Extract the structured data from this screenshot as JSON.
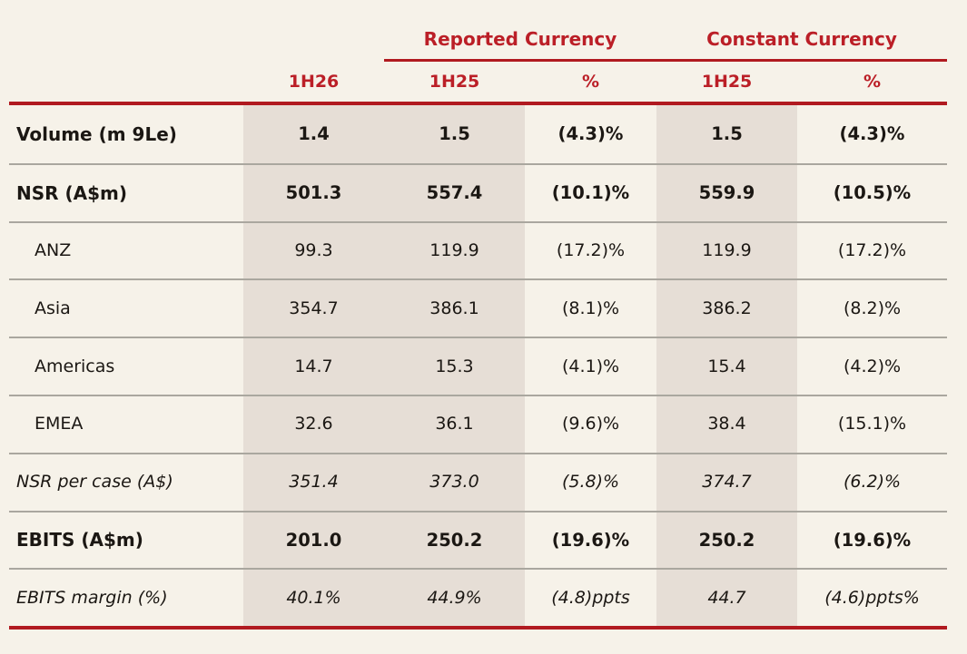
{
  "colors": {
    "background": "#f6f2e9",
    "column_shade": "#e6ded6",
    "accent_red": "#bb1f27",
    "rule_red": "#b11a20",
    "separator_gray": "#aaa79f",
    "text": "#1b1713"
  },
  "header": {
    "groups": [
      {
        "label": "Reported Currency"
      },
      {
        "label": "Constant Currency"
      }
    ],
    "columns": [
      "1H26",
      "1H25",
      "%",
      "1H25",
      "%"
    ]
  },
  "rows": [
    {
      "label": "Volume (m 9Le)",
      "style": "bold",
      "cells": [
        "1.4",
        "1.5",
        "(4.3)%",
        "1.5",
        "(4.3)%"
      ]
    },
    {
      "label": "NSR (A$m)",
      "style": "bold",
      "cells": [
        "501.3",
        "557.4",
        "(10.1)%",
        "559.9",
        "(10.5)%"
      ]
    },
    {
      "label": "ANZ",
      "style": "plain",
      "cells": [
        "99.3",
        "119.9",
        "(17.2)%",
        "119.9",
        "(17.2)%"
      ]
    },
    {
      "label": "Asia",
      "style": "plain",
      "cells": [
        "354.7",
        "386.1",
        "(8.1)%",
        "386.2",
        "(8.2)%"
      ]
    },
    {
      "label": "Americas",
      "style": "plain",
      "cells": [
        "14.7",
        "15.3",
        "(4.1)%",
        "15.4",
        "(4.2)%"
      ]
    },
    {
      "label": "EMEA",
      "style": "plain",
      "cells": [
        "32.6",
        "36.1",
        "(9.6)%",
        "38.4",
        "(15.1)%"
      ]
    },
    {
      "label": "NSR per case (A$)",
      "style": "italic",
      "cells": [
        "351.4",
        "373.0",
        "(5.8)%",
        "374.7",
        "(6.2)%"
      ]
    },
    {
      "label": "EBITS (A$m)",
      "style": "bold",
      "cells": [
        "201.0",
        "250.2",
        "(19.6)%",
        "250.2",
        "(19.6)%"
      ]
    },
    {
      "label": "EBITS margin (%)",
      "style": "italic",
      "cells": [
        "40.1%",
        "44.9%",
        "(4.8)ppts",
        "44.7",
        "(4.6)ppts%"
      ]
    }
  ],
  "chart_data": {
    "type": "table",
    "title": "",
    "column_groups": [
      "",
      "",
      "Reported Currency",
      "Reported Currency",
      "Constant Currency",
      "Constant Currency"
    ],
    "columns": [
      "",
      "1H26",
      "1H25",
      "%",
      "1H25",
      "%"
    ],
    "rows": [
      [
        "Volume (m 9Le)",
        "1.4",
        "1.5",
        "(4.3)%",
        "1.5",
        "(4.3)%"
      ],
      [
        "NSR (A$m)",
        "501.3",
        "557.4",
        "(10.1)%",
        "559.9",
        "(10.5)%"
      ],
      [
        "ANZ",
        "99.3",
        "119.9",
        "(17.2)%",
        "119.9",
        "(17.2)%"
      ],
      [
        "Asia",
        "354.7",
        "386.1",
        "(8.1)%",
        "386.2",
        "(8.2)%"
      ],
      [
        "Americas",
        "14.7",
        "15.3",
        "(4.1)%",
        "15.4",
        "(4.2)%"
      ],
      [
        "EMEA",
        "32.6",
        "36.1",
        "(9.6)%",
        "38.4",
        "(15.1)%"
      ],
      [
        "NSR per case (A$)",
        "351.4",
        "373.0",
        "(5.8)%",
        "374.7",
        "(6.2)%"
      ],
      [
        "EBITS (A$m)",
        "201.0",
        "250.2",
        "(19.6)%",
        "250.2",
        "(19.6)%"
      ],
      [
        "EBITS margin (%)",
        "40.1%",
        "44.9%",
        "(4.8)ppts",
        "44.7",
        "(4.6)ppts%"
      ]
    ]
  }
}
